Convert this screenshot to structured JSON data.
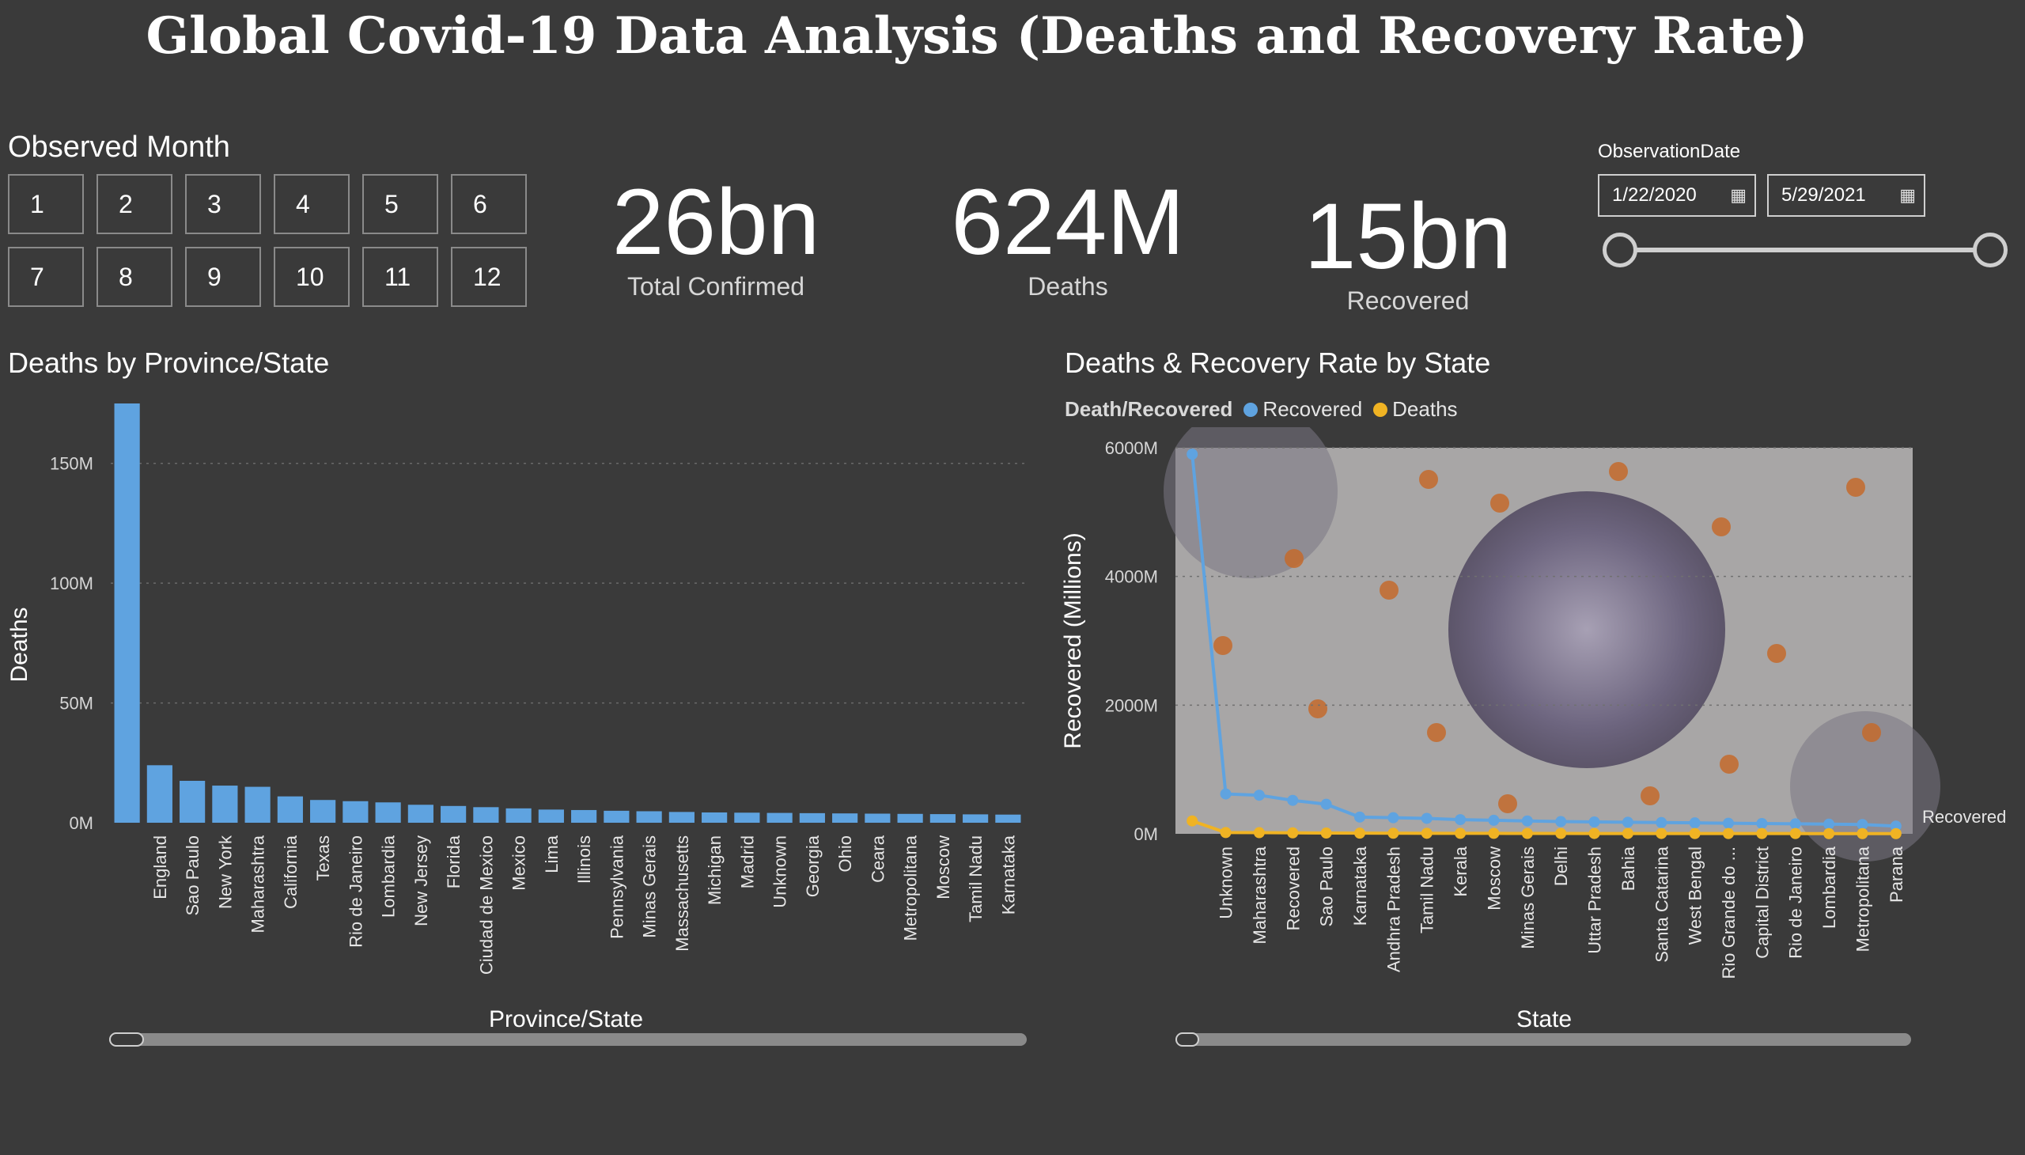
{
  "header": {
    "title": "Global Covid-19 Data Analysis (Deaths and Recovery Rate)"
  },
  "month_filter": {
    "label": "Observed Month",
    "months": [
      "1",
      "2",
      "3",
      "4",
      "5",
      "6",
      "7",
      "8",
      "9",
      "10",
      "11",
      "12"
    ]
  },
  "kpis": {
    "confirmed": {
      "value": "26bn",
      "label": "Total Confirmed"
    },
    "deaths": {
      "value": "624M",
      "label": "Deaths"
    },
    "recovered": {
      "value": "15bn",
      "label": "Recovered"
    }
  },
  "date_filter": {
    "label": "ObservationDate",
    "start": "1/22/2020",
    "end": "5/29/2021",
    "calendar_icon": "calendar-icon"
  },
  "colors": {
    "bar": "#5fa3e0",
    "recovered": "#5fa3e0",
    "deaths": "#f0b323",
    "background": "#3a3a3a"
  },
  "chart_data": [
    {
      "type": "bar",
      "title": "Deaths by Province/State",
      "xlabel": "Province/State",
      "ylabel": "Deaths",
      "ylim": [
        0,
        175
      ],
      "yticks": [
        0,
        50,
        100,
        150
      ],
      "ytick_labels": [
        "0M",
        "50M",
        "100M",
        "150M"
      ],
      "grid": true,
      "categories": [
        "",
        "England",
        "Sao Paulo",
        "New York",
        "Maharashtra",
        "California",
        "Texas",
        "Rio de Janeiro",
        "Lombardia",
        "New Jersey",
        "Florida",
        "Ciudad de Mexico",
        "Mexico",
        "Lima",
        "Illinois",
        "Pennsylvania",
        "Minas Gerais",
        "Massachusetts",
        "Michigan",
        "Madrid",
        "Unknown",
        "Georgia",
        "Ohio",
        "Ceara",
        "Metropolitana",
        "Moscow",
        "Tamil Nadu",
        "Karnataka"
      ],
      "values": [
        175,
        24,
        17.5,
        15.5,
        15,
        11,
        9.5,
        9,
        8.5,
        7.5,
        7,
        6.5,
        6,
        5.5,
        5.3,
        5,
        4.8,
        4.5,
        4.3,
        4.2,
        4.1,
        4,
        3.9,
        3.8,
        3.7,
        3.6,
        3.5,
        3.4
      ]
    },
    {
      "type": "line",
      "title": "Deaths & Recovery Rate by State",
      "xlabel": "State",
      "ylabel": "Recovered (Millions)",
      "ylim": [
        0,
        6000
      ],
      "yticks": [
        0,
        2000,
        4000,
        6000
      ],
      "ytick_labels": [
        "0M",
        "2000M",
        "4000M",
        "6000M"
      ],
      "grid": true,
      "legend": {
        "title": "Death/Recovered",
        "placement": "top-left"
      },
      "end_label": "Recovered",
      "categories": [
        "",
        "Unknown",
        "Maharashtra",
        "Recovered",
        "Sao Paulo",
        "Karnataka",
        "Andhra Pradesh",
        "Tamil Nadu",
        "Kerala",
        "Moscow",
        "Minas Gerais",
        "Delhi",
        "Uttar Pradesh",
        "Bahia",
        "Santa Catarina",
        "West Bengal",
        "Rio Grande do ...",
        "Capital District",
        "Rio de Janeiro",
        "Lombardia",
        "Metropolitana",
        "Parana"
      ],
      "series": [
        {
          "name": "Recovered",
          "values": [
            5900,
            620,
            600,
            520,
            460,
            260,
            250,
            240,
            220,
            210,
            200,
            190,
            185,
            180,
            175,
            170,
            165,
            160,
            155,
            150,
            145,
            120
          ]
        },
        {
          "name": "Deaths",
          "values": [
            200,
            20,
            18,
            15,
            12,
            10,
            9,
            8,
            7,
            7,
            6,
            6,
            5,
            5,
            5,
            4,
            4,
            4,
            4,
            3,
            3,
            3
          ]
        }
      ]
    }
  ]
}
